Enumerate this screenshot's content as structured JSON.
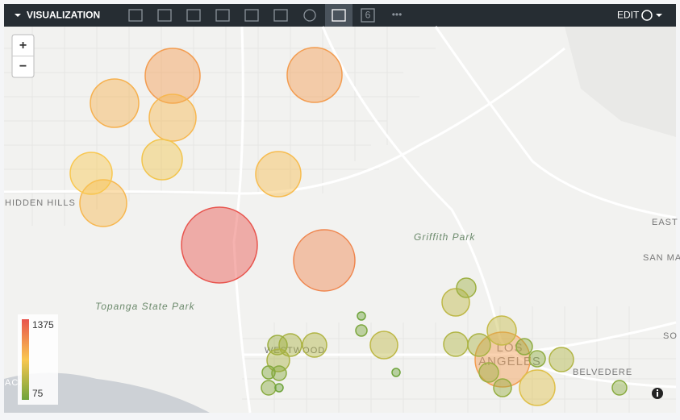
{
  "toolbar": {
    "title": "VISUALIZATION",
    "tab_number": "6",
    "more": "•••",
    "edit": "EDIT"
  },
  "map": {
    "zoom_in": "+",
    "zoom_out": "−",
    "labels": [
      "HIDDEN HILLS",
      "Griffith Park",
      "Topanga State Park",
      "WESTWOOD",
      "LOS\nANGELES",
      "BELVEDERE",
      "EAST L",
      "SAN MA",
      "SO",
      "ACH"
    ],
    "legend": {
      "max": 1375,
      "min": 75,
      "colors": [
        "#e8554e",
        "#f9c74f",
        "#6fa43c"
      ]
    },
    "points": {
      "values": [
        1375,
        1096,
        973,
        973,
        849,
        818,
        818,
        725,
        694,
        787,
        973,
        601,
        478,
        447,
        292,
        447,
        385,
        354,
        385,
        354,
        292,
        354,
        199,
        168,
        199,
        75,
        137,
        75,
        75,
        230,
        230,
        385,
        199,
        261,
        292
      ]
    }
  }
}
